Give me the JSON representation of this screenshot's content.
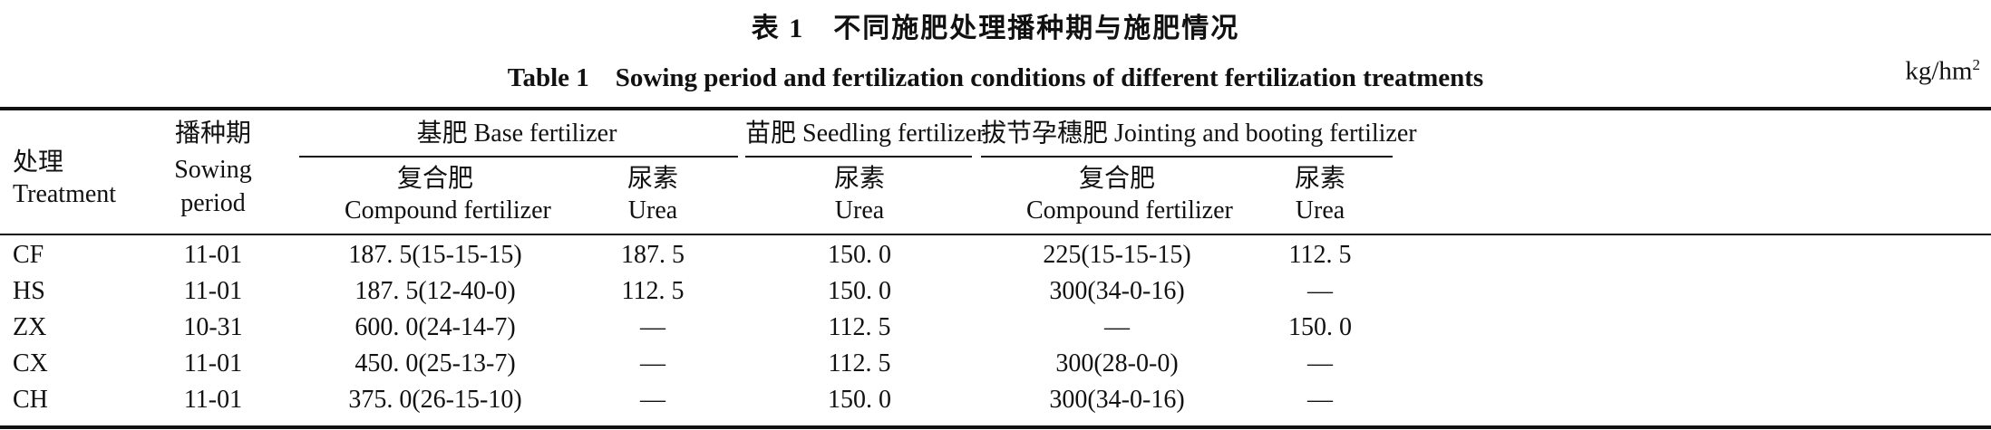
{
  "title_zh": "表 1　不同施肥处理播种期与施肥情况",
  "title_en": "Table 1　Sowing period and fertilization conditions of different fertilization treatments",
  "unit": "kg/hm",
  "unit_sup": "2",
  "headers": {
    "treatment_zh": "处理",
    "treatment_en": "Treatment",
    "sowing_zh": "播种期",
    "sowing_en_1": "Sowing",
    "sowing_en_2": "period",
    "base": "基肥 Base fertilizer",
    "seedling": "苗肥 Seedling fertilizer",
    "jointing": "拔节孕穗肥 Jointing and booting fertilizer",
    "compound_zh": "复合肥",
    "compound_en": "Compound fertilizer",
    "urea_zh": "尿素",
    "urea_en": "Urea"
  },
  "rows": [
    {
      "treatment": "CF",
      "sowing": "11-01",
      "base_compound": "187. 5(15-15-15)",
      "base_urea": "187. 5",
      "seedling_urea": "150. 0",
      "joint_compound": "225(15-15-15)",
      "joint_urea": "112. 5"
    },
    {
      "treatment": "HS",
      "sowing": "11-01",
      "base_compound": "187. 5(12-40-0)",
      "base_urea": "112. 5",
      "seedling_urea": "150. 0",
      "joint_compound": "300(34-0-16)",
      "joint_urea": "—"
    },
    {
      "treatment": "ZX",
      "sowing": "10-31",
      "base_compound": "600. 0(24-14-7)",
      "base_urea": "—",
      "seedling_urea": "112. 5",
      "joint_compound": "—",
      "joint_urea": "150. 0"
    },
    {
      "treatment": "CX",
      "sowing": "11-01",
      "base_compound": "450. 0(25-13-7)",
      "base_urea": "—",
      "seedling_urea": "112. 5",
      "joint_compound": "300(28-0-0)",
      "joint_urea": "—"
    },
    {
      "treatment": "CH",
      "sowing": "11-01",
      "base_compound": "375. 0(26-15-10)",
      "base_urea": "—",
      "seedling_urea": "150. 0",
      "joint_compound": "300(34-0-16)",
      "joint_urea": "—"
    }
  ]
}
